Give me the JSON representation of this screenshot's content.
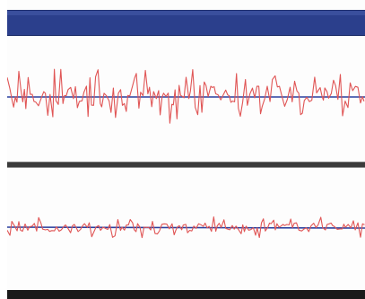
{
  "window": {
    "title_bar_color": "#2b3f8c",
    "divider_color": "#3b3b3b",
    "status_bar_color": "#1a1a1a"
  },
  "plots": [
    {
      "series": [
        {
          "color": "#e05555"
        },
        {
          "color": "#2a3f9e"
        }
      ]
    },
    {
      "series": [
        {
          "color": "#e05555"
        },
        {
          "color": "#2a3f9e"
        }
      ]
    }
  ]
}
